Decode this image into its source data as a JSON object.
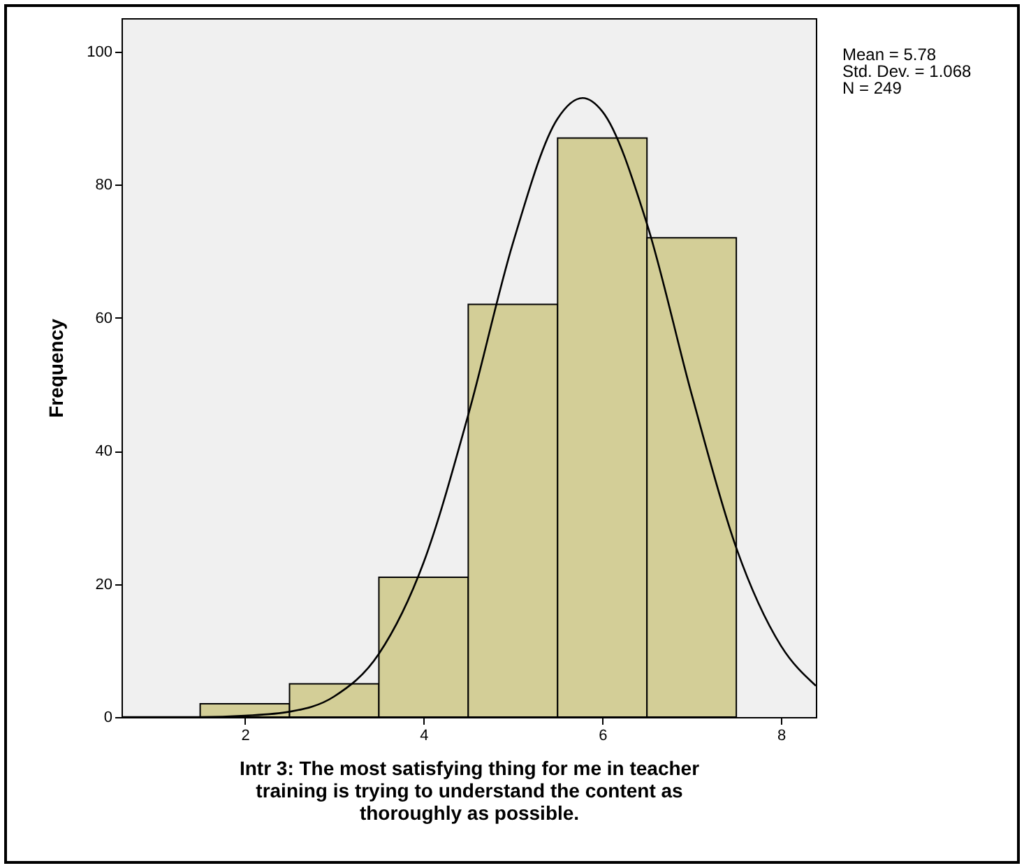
{
  "chart_data": {
    "type": "histogram",
    "xlabel": "Intr 3: The most satisfying thing for me in teacher training is trying to understand the content as thoroughly as possible.",
    "ylabel": "Frequency",
    "bins": [
      1.5,
      2.5,
      3.5,
      4.5,
      5.5,
      6.5,
      7.5
    ],
    "values": [
      2,
      5,
      21,
      62,
      87,
      72
    ],
    "color": "#d3ce97",
    "series": [
      {
        "type": "line",
        "color": "#000000",
        "x": [
          0.62,
          1.5,
          2,
          2.5,
          3,
          3.5,
          4,
          4.5,
          5,
          5.5,
          5.78,
          6,
          6.5,
          7,
          7.5,
          8,
          8.39
        ],
        "values": [
          0,
          0,
          0.2,
          0.8,
          3.1,
          9.5,
          23.2,
          45.4,
          71.2,
          89.9,
          93,
          91,
          74.1,
          48.5,
          25.4,
          10.7,
          4.7
        ]
      }
    ],
    "xlim": [
      0.62,
      8.39
    ],
    "ylim": [
      0,
      105
    ],
    "xticks": [
      2,
      4,
      6,
      8
    ],
    "yticks": [
      0,
      20,
      40,
      60,
      80,
      100
    ],
    "annotations": [
      "Mean = 5.78",
      "Std. Dev. = 1.068",
      "N = 249"
    ],
    "grid": false
  }
}
